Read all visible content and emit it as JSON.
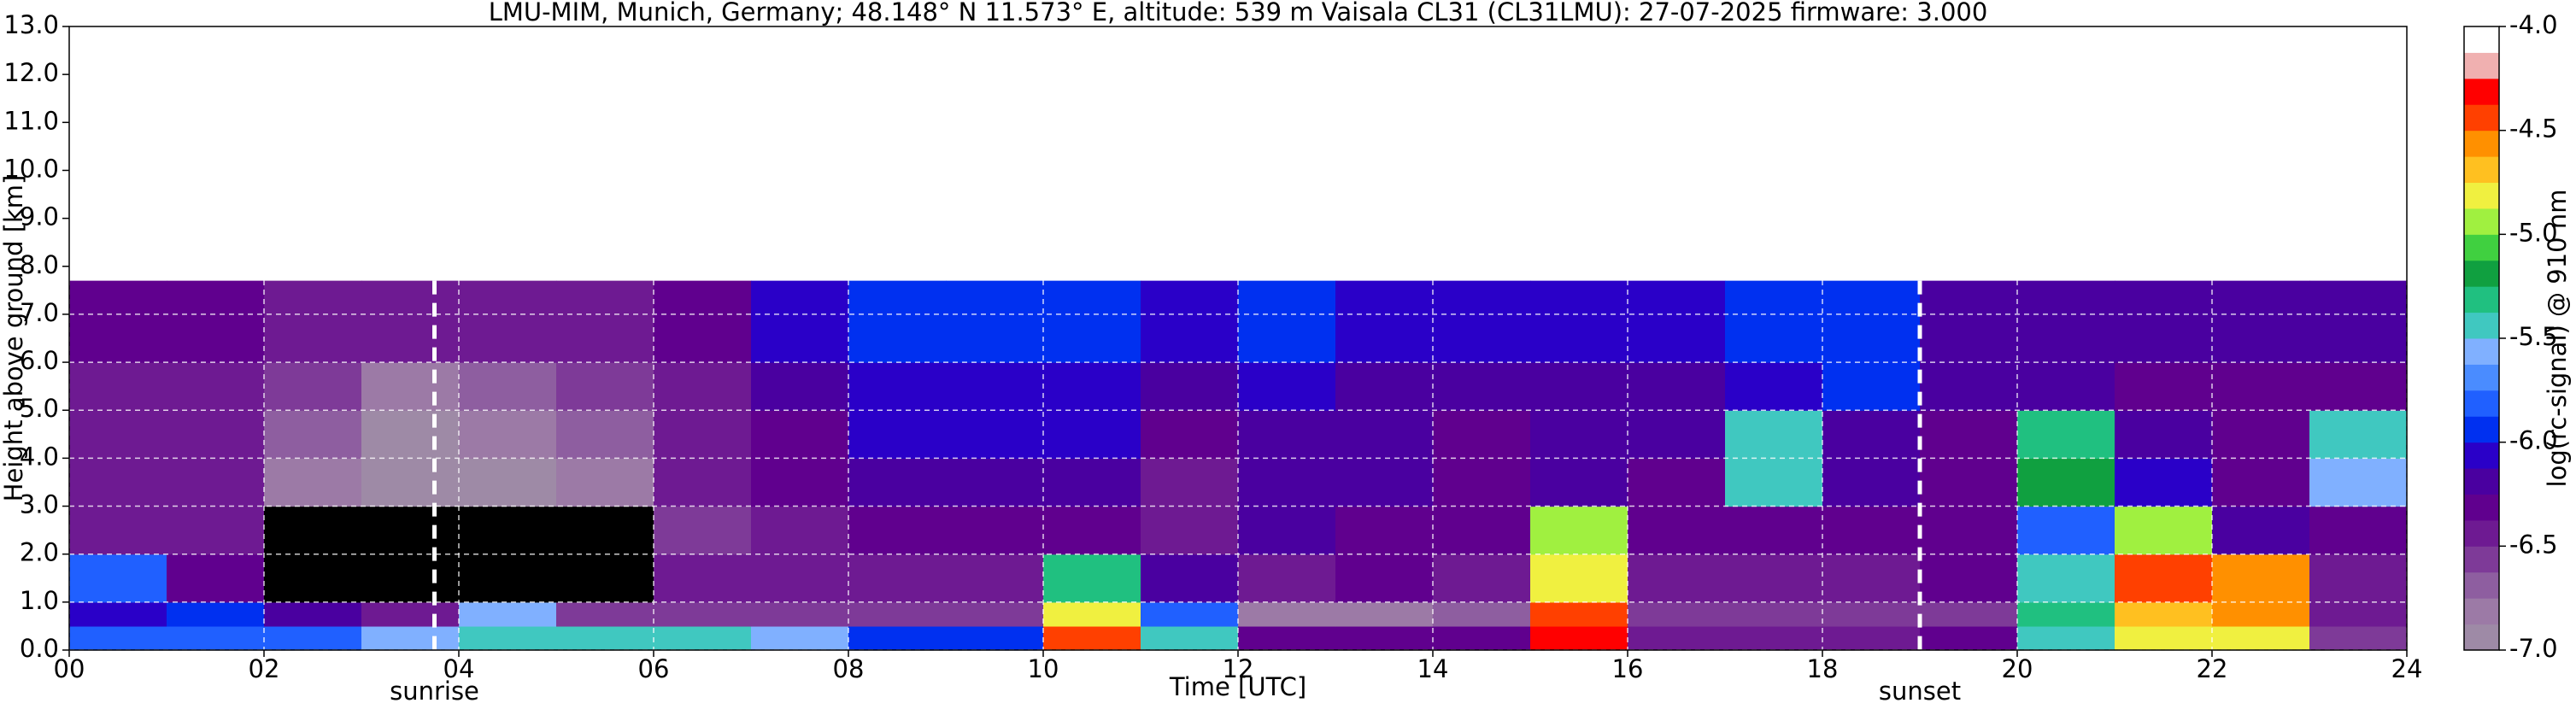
{
  "chart_data": {
    "type": "heatmap",
    "title": "LMU-MIM, Munich, Germany; 48.148° N 11.573° E, altitude: 539 m    Vaisala CL31 (CL31LMU): 27-07-2025    firmware: 3.000",
    "xlabel": "Time [UTC]",
    "ylabel": "Height above ground [km]",
    "colorbar_label": "log(rc-signal) @ 910 nm",
    "xlim": [
      0,
      24
    ],
    "ylim": [
      0,
      13
    ],
    "xticks": [
      {
        "value": 0,
        "label": "00"
      },
      {
        "value": 2,
        "label": "02"
      },
      {
        "value": 4,
        "label": "04"
      },
      {
        "value": 6,
        "label": "06"
      },
      {
        "value": 8,
        "label": "08"
      },
      {
        "value": 10,
        "label": "10"
      },
      {
        "value": 12,
        "label": "12"
      },
      {
        "value": 14,
        "label": "14"
      },
      {
        "value": 16,
        "label": "16"
      },
      {
        "value": 18,
        "label": "18"
      },
      {
        "value": 20,
        "label": "20"
      },
      {
        "value": 22,
        "label": "22"
      },
      {
        "value": 24,
        "label": "24"
      }
    ],
    "yticks": [
      {
        "value": 0,
        "label": "0.0"
      },
      {
        "value": 1,
        "label": "1.0"
      },
      {
        "value": 2,
        "label": "2.0"
      },
      {
        "value": 3,
        "label": "3.0"
      },
      {
        "value": 4,
        "label": "4.0"
      },
      {
        "value": 5,
        "label": "5.0"
      },
      {
        "value": 6,
        "label": "6.0"
      },
      {
        "value": 7,
        "label": "7.0"
      },
      {
        "value": 8,
        "label": "8.0"
      },
      {
        "value": 9,
        "label": "9.0"
      },
      {
        "value": 10,
        "label": "10.0"
      },
      {
        "value": 11,
        "label": "11.0"
      },
      {
        "value": 12,
        "label": "12.0"
      },
      {
        "value": 13,
        "label": "13.0"
      }
    ],
    "grid": true,
    "x_bins": [
      0,
      1,
      2,
      3,
      4,
      5,
      6,
      7,
      8,
      9,
      10,
      11,
      12,
      13,
      14,
      15,
      16,
      17,
      18,
      19,
      20,
      21,
      22,
      23,
      24
    ],
    "y_bins": [
      0,
      0.5,
      1,
      2,
      3,
      4,
      5,
      6,
      7.7
    ],
    "values": [
      [
        -5.8,
        -5.8,
        -5.8,
        -5.6,
        -5.4,
        -5.5,
        -5.5,
        -5.6,
        -6.0,
        -5.9,
        -4.5,
        -5.5,
        -6.3,
        -6.3,
        -6.3,
        -4.3,
        -6.5,
        -6.5,
        -6.5,
        -6.3,
        -5.5,
        -4.8,
        -4.8,
        -6.6
      ],
      [
        -6.1,
        -5.9,
        -6.2,
        -6.4,
        -5.6,
        -6.6,
        -6.6,
        -6.6,
        -6.6,
        -6.6,
        -4.8,
        -5.8,
        -6.8,
        -6.8,
        -6.7,
        -4.5,
        -6.6,
        -6.6,
        -6.6,
        -6.6,
        -5.3,
        -4.7,
        -4.6,
        -6.5
      ],
      [
        -5.8,
        -6.3,
        -7.2,
        -7.3,
        -7.3,
        -7.2,
        -6.5,
        -6.4,
        -6.4,
        -6.4,
        -5.3,
        -6.2,
        -6.4,
        -6.3,
        -6.4,
        -4.8,
        -6.4,
        -6.4,
        -6.4,
        -6.3,
        -5.5,
        -4.5,
        -4.6,
        -6.4
      ],
      [
        -6.4,
        -6.4,
        -7.1,
        -7.2,
        -7.2,
        -7.1,
        -6.6,
        -6.4,
        -6.3,
        -6.3,
        -6.3,
        -6.4,
        -6.2,
        -6.3,
        -6.3,
        -5.0,
        -6.3,
        -6.3,
        -6.3,
        -6.3,
        -5.8,
        -4.9,
        -6.2,
        -6.3
      ],
      [
        -6.4,
        -6.5,
        -6.8,
        -7.0,
        -6.9,
        -6.8,
        -6.5,
        -6.3,
        -6.2,
        -6.2,
        -6.2,
        -6.4,
        -6.2,
        -6.2,
        -6.3,
        -6.2,
        -6.3,
        -5.5,
        -6.2,
        -6.3,
        -5.2,
        -6.1,
        -6.3,
        -5.6
      ],
      [
        -6.4,
        -6.5,
        -6.7,
        -6.9,
        -6.8,
        -6.7,
        -6.4,
        -6.3,
        -6.1,
        -6.1,
        -6.1,
        -6.3,
        -6.2,
        -6.2,
        -6.3,
        -6.2,
        -6.2,
        -5.4,
        -6.2,
        -6.3,
        -5.3,
        -6.2,
        -6.3,
        -5.5
      ],
      [
        -6.4,
        -6.4,
        -6.6,
        -6.8,
        -6.7,
        -6.6,
        -6.4,
        -6.2,
        -6.1,
        -6.1,
        -6.1,
        -6.2,
        -6.1,
        -6.2,
        -6.2,
        -6.2,
        -6.2,
        -6.1,
        -6.0,
        -6.2,
        -6.2,
        -6.3,
        -6.3,
        -6.3
      ],
      [
        -6.3,
        -6.3,
        -6.4,
        -6.5,
        -6.5,
        -6.4,
        -6.3,
        -6.1,
        -6.0,
        -6.0,
        -6.0,
        -6.1,
        -6.0,
        -6.1,
        -6.1,
        -6.1,
        -6.1,
        -6.0,
        -6.0,
        -6.2,
        -6.2,
        -6.2,
        -6.2,
        -6.2
      ]
    ],
    "clim": [
      -7,
      -4
    ],
    "colormap": [
      "#9e8aa6",
      "#9c7aa6",
      "#8e5ea0",
      "#7e3a98",
      "#6e1a92",
      "#60008e",
      "#4a00a0",
      "#2a00c8",
      "#0030f0",
      "#2060ff",
      "#4a8cff",
      "#80b0ff",
      "#40c8c0",
      "#20c080",
      "#10a040",
      "#40d040",
      "#a0f040",
      "#f0f040",
      "#ffc020",
      "#ff9000",
      "#ff4000",
      "#ff0000",
      "#f0b0b0",
      "#ffffff"
    ],
    "under_color": "#000000",
    "colorbar_ticks": [
      {
        "value": -4,
        "label": "-4.0"
      },
      {
        "value": -4.5,
        "label": "-4.5"
      },
      {
        "value": -5,
        "label": "-5.0"
      },
      {
        "value": -5.5,
        "label": "-5.5"
      },
      {
        "value": -6,
        "label": "-6.0"
      },
      {
        "value": -6.5,
        "label": "-6.5"
      },
      {
        "value": -7,
        "label": "-7.0"
      }
    ],
    "annotations": [
      {
        "label": "sunrise",
        "x": 3.75
      },
      {
        "label": "sunset",
        "x": 19.0
      }
    ]
  }
}
